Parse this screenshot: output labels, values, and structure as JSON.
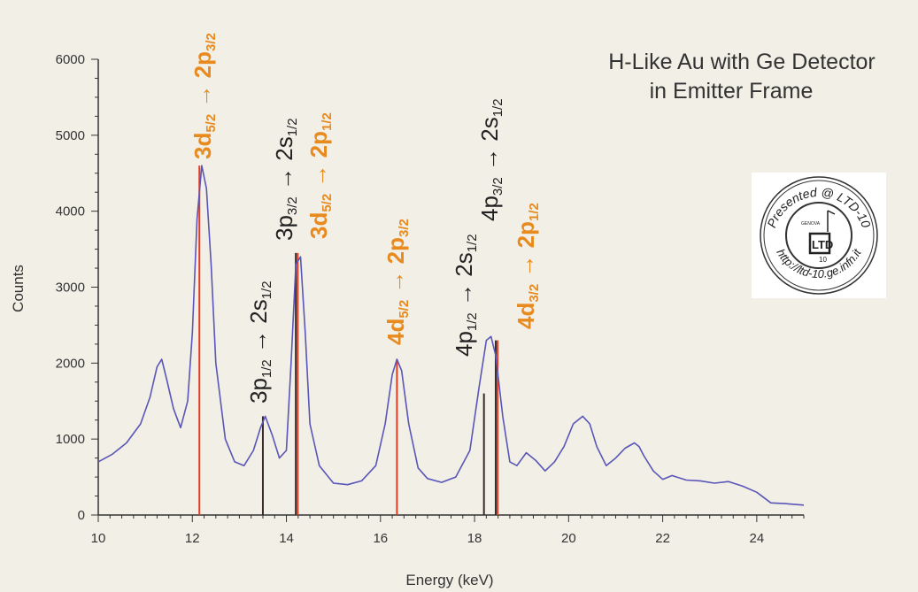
{
  "chart_data": {
    "type": "line",
    "title": [
      "H-Like Au with Ge Detector",
      "in Emitter Frame"
    ],
    "xlabel": "Energy (keV)",
    "ylabel": "Counts",
    "xlim": [
      10,
      25
    ],
    "ylim": [
      0,
      6000
    ],
    "xticks": [
      10,
      12,
      14,
      16,
      18,
      20,
      22,
      24
    ],
    "yticks": [
      0,
      1000,
      2000,
      3000,
      4000,
      5000,
      6000
    ],
    "colors": {
      "spectrum": "#5a55b8",
      "orange": "#e88a1e",
      "black": "#222222",
      "red_line": "#e63c22",
      "dark_line": "#3a2a2a"
    },
    "series": [
      {
        "x": [
          10.0,
          10.3,
          10.6,
          10.9,
          11.1,
          11.25,
          11.35,
          11.45,
          11.6,
          11.75,
          11.9,
          12.0,
          12.1,
          12.2,
          12.3,
          12.4,
          12.5,
          12.7,
          12.9,
          13.1,
          13.3,
          13.45,
          13.55,
          13.7,
          13.85,
          14.0,
          14.1,
          14.2,
          14.3,
          14.4,
          14.5,
          14.7,
          15.0,
          15.3,
          15.6,
          15.9,
          16.1,
          16.25,
          16.35,
          16.45,
          16.6,
          16.8,
          17.0,
          17.3,
          17.6,
          17.9,
          18.1,
          18.25,
          18.35,
          18.45,
          18.6,
          18.75,
          18.9,
          19.1,
          19.3,
          19.5,
          19.7,
          19.9,
          20.1,
          20.3,
          20.45,
          20.6,
          20.8,
          21.0,
          21.2,
          21.4,
          21.5,
          21.6,
          21.8,
          22.0,
          22.2,
          22.5,
          22.8,
          23.1,
          23.4,
          23.7,
          24.0,
          24.3,
          24.6,
          25.0
        ],
        "y": [
          700,
          800,
          950,
          1200,
          1550,
          1950,
          2050,
          1800,
          1400,
          1150,
          1500,
          2400,
          3900,
          4600,
          4300,
          3300,
          2000,
          1000,
          700,
          650,
          850,
          1150,
          1300,
          1050,
          750,
          850,
          2000,
          3300,
          3400,
          2400,
          1200,
          650,
          420,
          400,
          450,
          650,
          1200,
          1850,
          2050,
          1900,
          1200,
          620,
          480,
          430,
          500,
          850,
          1700,
          2300,
          2350,
          2100,
          1300,
          700,
          650,
          820,
          720,
          580,
          700,
          900,
          1200,
          1300,
          1200,
          900,
          650,
          750,
          880,
          950,
          900,
          780,
          580,
          470,
          520,
          460,
          450,
          420,
          440,
          380,
          300,
          160,
          150,
          130
        ]
      }
    ],
    "lines": [
      {
        "x": 12.15,
        "y": 4600,
        "color": "red_line"
      },
      {
        "x": 13.5,
        "y": 1300,
        "color": "dark_line"
      },
      {
        "x": 14.2,
        "y": 3450,
        "color": "dark_line"
      },
      {
        "x": 14.24,
        "y": 3450,
        "color": "red_line"
      },
      {
        "x": 16.35,
        "y": 2050,
        "color": "red_line"
      },
      {
        "x": 18.2,
        "y": 1600,
        "color": "dark_line"
      },
      {
        "x": 18.45,
        "y": 2300,
        "color": "dark_line"
      },
      {
        "x": 18.49,
        "y": 2300,
        "color": "red_line"
      }
    ],
    "annotations": [
      {
        "color": "orange",
        "parts": [
          [
            "3d",
            ""
          ],
          [
            "5/2",
            "sub"
          ],
          [
            " → ",
            ""
          ],
          [
            "2p",
            ""
          ],
          [
            "3/2",
            "sub"
          ]
        ]
      },
      {
        "color": "black",
        "parts": [
          [
            "3p",
            ""
          ],
          [
            "1/2",
            "sub"
          ],
          [
            " → ",
            ""
          ],
          [
            "2s",
            ""
          ],
          [
            "1/2",
            "sub"
          ]
        ]
      },
      {
        "color": "black",
        "parts": [
          [
            "3p",
            ""
          ],
          [
            "3/2",
            "sub"
          ],
          [
            " → ",
            ""
          ],
          [
            "2s",
            ""
          ],
          [
            "1/2",
            "sub"
          ]
        ]
      },
      {
        "color": "orange",
        "parts": [
          [
            "3d",
            ""
          ],
          [
            "5/2",
            "sub"
          ],
          [
            " → ",
            ""
          ],
          [
            "2p",
            ""
          ],
          [
            "1/2",
            "sub"
          ]
        ]
      },
      {
        "color": "orange",
        "parts": [
          [
            "4d",
            ""
          ],
          [
            "5/2",
            "sub"
          ],
          [
            " → ",
            ""
          ],
          [
            "2p",
            ""
          ],
          [
            "3/2",
            "sub"
          ]
        ]
      },
      {
        "color": "black",
        "parts": [
          [
            "4p",
            ""
          ],
          [
            "1/2",
            "sub"
          ],
          [
            " → ",
            ""
          ],
          [
            "2s",
            ""
          ],
          [
            "1/2",
            "sub"
          ]
        ]
      },
      {
        "color": "black",
        "parts": [
          [
            "4p",
            ""
          ],
          [
            "3/2",
            "sub"
          ],
          [
            " → ",
            ""
          ],
          [
            "2s",
            ""
          ],
          [
            "1/2",
            "sub"
          ]
        ]
      },
      {
        "color": "orange",
        "parts": [
          [
            "4d",
            ""
          ],
          [
            "3/2",
            "sub"
          ],
          [
            " → ",
            ""
          ],
          [
            "2p",
            ""
          ],
          [
            "1/2",
            "sub"
          ]
        ]
      }
    ]
  },
  "stamp": {
    "outer_text": "Presented @ LTD-10  http://ltd-10.ge.infn.it",
    "inner_text": "LTD 10"
  }
}
